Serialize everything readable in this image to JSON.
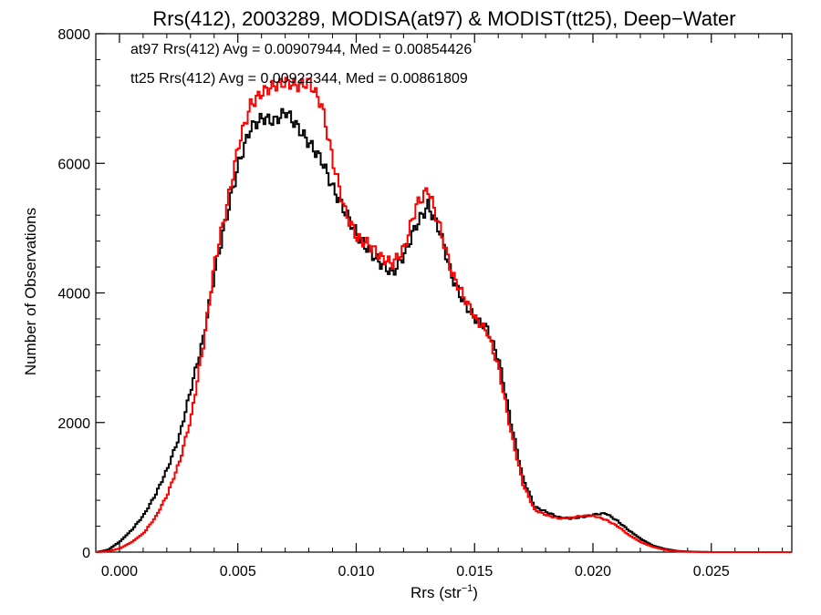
{
  "chart_data": {
    "type": "line",
    "title": "Rrs(412), 2003289, MODISA(at97) & MODIST(tt25), Deep−Water",
    "xlabel": "Rrs (str",
    "xlabel_sup": "−1",
    "xlabel_end": ")",
    "ylabel": "Number of Observations",
    "xlim": [
      -0.001,
      0.0284
    ],
    "ylim": [
      0,
      8000
    ],
    "x_ticks": [
      0.0,
      0.005,
      0.01,
      0.015,
      0.02,
      0.025
    ],
    "x_tick_labels": [
      "0.000",
      "0.005",
      "0.010",
      "0.015",
      "0.020",
      "0.025"
    ],
    "y_ticks": [
      0,
      2000,
      4000,
      6000,
      8000
    ],
    "y_tick_labels": [
      "0",
      "2000",
      "4000",
      "6000",
      "8000"
    ],
    "grid": false,
    "legend_position": "top-left",
    "series": [
      {
        "name": "at97",
        "color": "#000000",
        "label": "at97 Rrs(412) Avg = 0.00907944, Med = 0.00854426",
        "points": [
          [
            -0.001,
            0
          ],
          [
            -0.0005,
            40
          ],
          [
            0.0,
            170
          ],
          [
            0.0005,
            350
          ],
          [
            0.001,
            580
          ],
          [
            0.0015,
            900
          ],
          [
            0.002,
            1300
          ],
          [
            0.0025,
            1800
          ],
          [
            0.003,
            2550
          ],
          [
            0.0035,
            3300
          ],
          [
            0.004,
            4350
          ],
          [
            0.0045,
            5200
          ],
          [
            0.005,
            6000
          ],
          [
            0.0055,
            6550
          ],
          [
            0.006,
            6700
          ],
          [
            0.0065,
            6650
          ],
          [
            0.007,
            6800
          ],
          [
            0.0075,
            6550
          ],
          [
            0.008,
            6300
          ],
          [
            0.0085,
            6050
          ],
          [
            0.009,
            5600
          ],
          [
            0.0095,
            5250
          ],
          [
            0.01,
            4900
          ],
          [
            0.0105,
            4650
          ],
          [
            0.011,
            4450
          ],
          [
            0.0115,
            4300
          ],
          [
            0.012,
            4600
          ],
          [
            0.0125,
            5050
          ],
          [
            0.013,
            5350
          ],
          [
            0.0135,
            4950
          ],
          [
            0.014,
            4250
          ],
          [
            0.0145,
            3850
          ],
          [
            0.015,
            3600
          ],
          [
            0.0155,
            3450
          ],
          [
            0.016,
            2950
          ],
          [
            0.0165,
            2000
          ],
          [
            0.017,
            1150
          ],
          [
            0.0175,
            700
          ],
          [
            0.018,
            620
          ],
          [
            0.0185,
            540
          ],
          [
            0.019,
            520
          ],
          [
            0.0195,
            540
          ],
          [
            0.02,
            580
          ],
          [
            0.0205,
            600
          ],
          [
            0.021,
            480
          ],
          [
            0.0215,
            330
          ],
          [
            0.022,
            200
          ],
          [
            0.0225,
            100
          ],
          [
            0.023,
            50
          ],
          [
            0.0235,
            20
          ],
          [
            0.024,
            8
          ],
          [
            0.025,
            0
          ],
          [
            0.0284,
            0
          ]
        ]
      },
      {
        "name": "tt25",
        "color": "#ff0000",
        "label": "tt25 Rrs(412) Avg = 0.00922344, Med = 0.00861809",
        "points": [
          [
            -0.001,
            0
          ],
          [
            -0.0005,
            15
          ],
          [
            0.0,
            60
          ],
          [
            0.0005,
            160
          ],
          [
            0.001,
            300
          ],
          [
            0.0015,
            550
          ],
          [
            0.002,
            900
          ],
          [
            0.0025,
            1400
          ],
          [
            0.003,
            2100
          ],
          [
            0.0035,
            3200
          ],
          [
            0.004,
            4500
          ],
          [
            0.0045,
            5350
          ],
          [
            0.005,
            6300
          ],
          [
            0.0055,
            6900
          ],
          [
            0.006,
            7100
          ],
          [
            0.0065,
            7200
          ],
          [
            0.007,
            7250
          ],
          [
            0.0075,
            7200
          ],
          [
            0.008,
            7250
          ],
          [
            0.0085,
            6900
          ],
          [
            0.009,
            6000
          ],
          [
            0.0095,
            5250
          ],
          [
            0.01,
            4850
          ],
          [
            0.0105,
            4750
          ],
          [
            0.011,
            4550
          ],
          [
            0.0115,
            4450
          ],
          [
            0.012,
            4700
          ],
          [
            0.0125,
            5350
          ],
          [
            0.013,
            5600
          ],
          [
            0.0135,
            5000
          ],
          [
            0.014,
            4300
          ],
          [
            0.0145,
            3950
          ],
          [
            0.015,
            3600
          ],
          [
            0.0155,
            3400
          ],
          [
            0.016,
            2800
          ],
          [
            0.0165,
            1850
          ],
          [
            0.017,
            1050
          ],
          [
            0.0175,
            650
          ],
          [
            0.018,
            570
          ],
          [
            0.0185,
            520
          ],
          [
            0.019,
            530
          ],
          [
            0.0195,
            560
          ],
          [
            0.02,
            560
          ],
          [
            0.0205,
            500
          ],
          [
            0.021,
            400
          ],
          [
            0.0215,
            260
          ],
          [
            0.022,
            150
          ],
          [
            0.0225,
            80
          ],
          [
            0.023,
            35
          ],
          [
            0.0235,
            12
          ],
          [
            0.024,
            4
          ],
          [
            0.025,
            0
          ],
          [
            0.0284,
            0
          ]
        ]
      }
    ]
  }
}
